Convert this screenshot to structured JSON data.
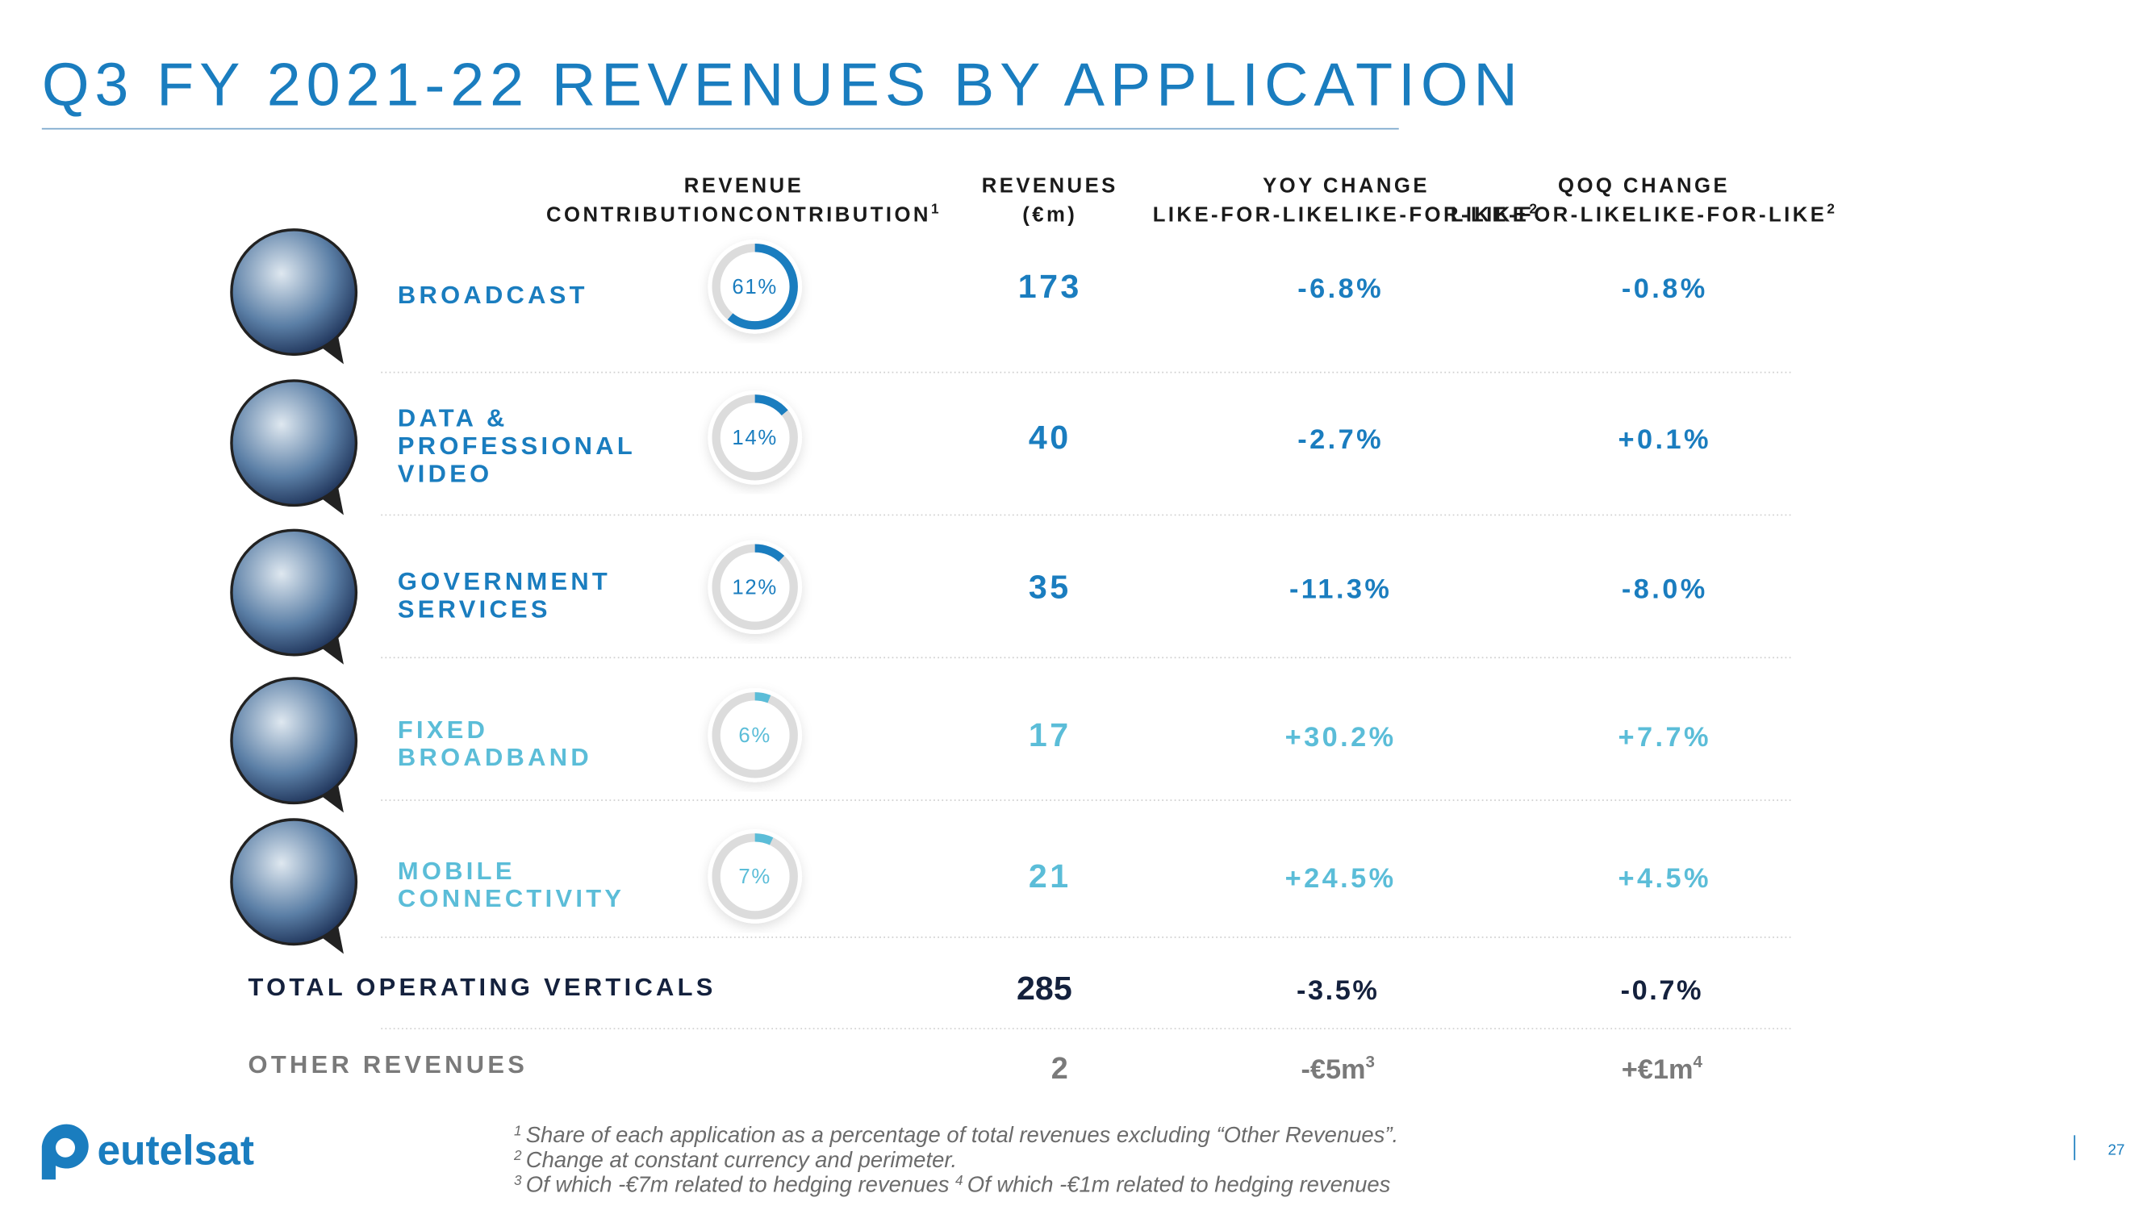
{
  "title": "Q3 FY 2021-22 REVENUES BY APPLICATION",
  "columns": [
    {
      "lines": [
        "REVENUE",
        "CONTRIBUTION"
      ],
      "note": "1"
    },
    {
      "lines": [
        "REVENUES",
        "(€m)"
      ]
    },
    {
      "lines": [
        "YOY CHANGE",
        "LIKE-FOR-LIKE"
      ],
      "note": "2"
    },
    {
      "lines": [
        "QOQ CHANGE",
        "LIKE-FOR-LIKE"
      ],
      "note": "2"
    }
  ],
  "rows": [
    {
      "name": [
        "BROADCAST"
      ],
      "contribution": {
        "value": 61,
        "label": "61%"
      },
      "revenue": 173,
      "yoy": "-6.8%",
      "qoq": "-0.8%",
      "color": "#1a7dbf"
    },
    {
      "name": [
        "DATA &",
        "PROFESSIONAL",
        "VIDEO"
      ],
      "contribution": {
        "value": 14,
        "label": "14%"
      },
      "revenue": 40,
      "yoy": "-2.7%",
      "qoq": "+0.1%",
      "color": "#1a7dbf"
    },
    {
      "name": [
        "GOVERNMENT",
        "SERVICES"
      ],
      "contribution": {
        "value": 12,
        "label": "12%"
      },
      "revenue": 35,
      "yoy": "-11.3%",
      "qoq": "-8.0%",
      "color": "#1a7dbf"
    },
    {
      "name": [
        "FIXED",
        "BROADBAND"
      ],
      "contribution": {
        "value": 6,
        "label": "6%"
      },
      "revenue": 17,
      "yoy": "+30.2%",
      "qoq": "+7.7%",
      "color": "#5bbdd8"
    },
    {
      "name": [
        "MOBILE",
        "CONNECTIVITY"
      ],
      "contribution": {
        "value": 7,
        "label": "7%"
      },
      "revenue": 21,
      "yoy": "+24.5%",
      "qoq": "+4.5%",
      "color": "#5bbdd8"
    }
  ],
  "total": {
    "label": "TOTAL OPERATING VERTICALS",
    "revenue": 285,
    "yoy": "-3.5%",
    "qoq": "-0.7%"
  },
  "other": {
    "label": "OTHER REVENUES",
    "revenue": 2,
    "yoy": "-€5m",
    "yoy_note": "3",
    "qoq": "+€1m",
    "qoq_note": "4"
  },
  "footnotes": [
    {
      "note": "1",
      "text": "Share of each application as a percentage of total revenues excluding “Other Revenues”."
    },
    {
      "note": "2",
      "text": "Change at constant currency and perimeter."
    },
    {
      "note": "3",
      "text": "Of which -€7m related to hedging revenues ",
      "note2": "4",
      "text2": "Of which -€1m related to hedging revenues"
    }
  ],
  "logo": "eutelsat",
  "page": "27"
}
